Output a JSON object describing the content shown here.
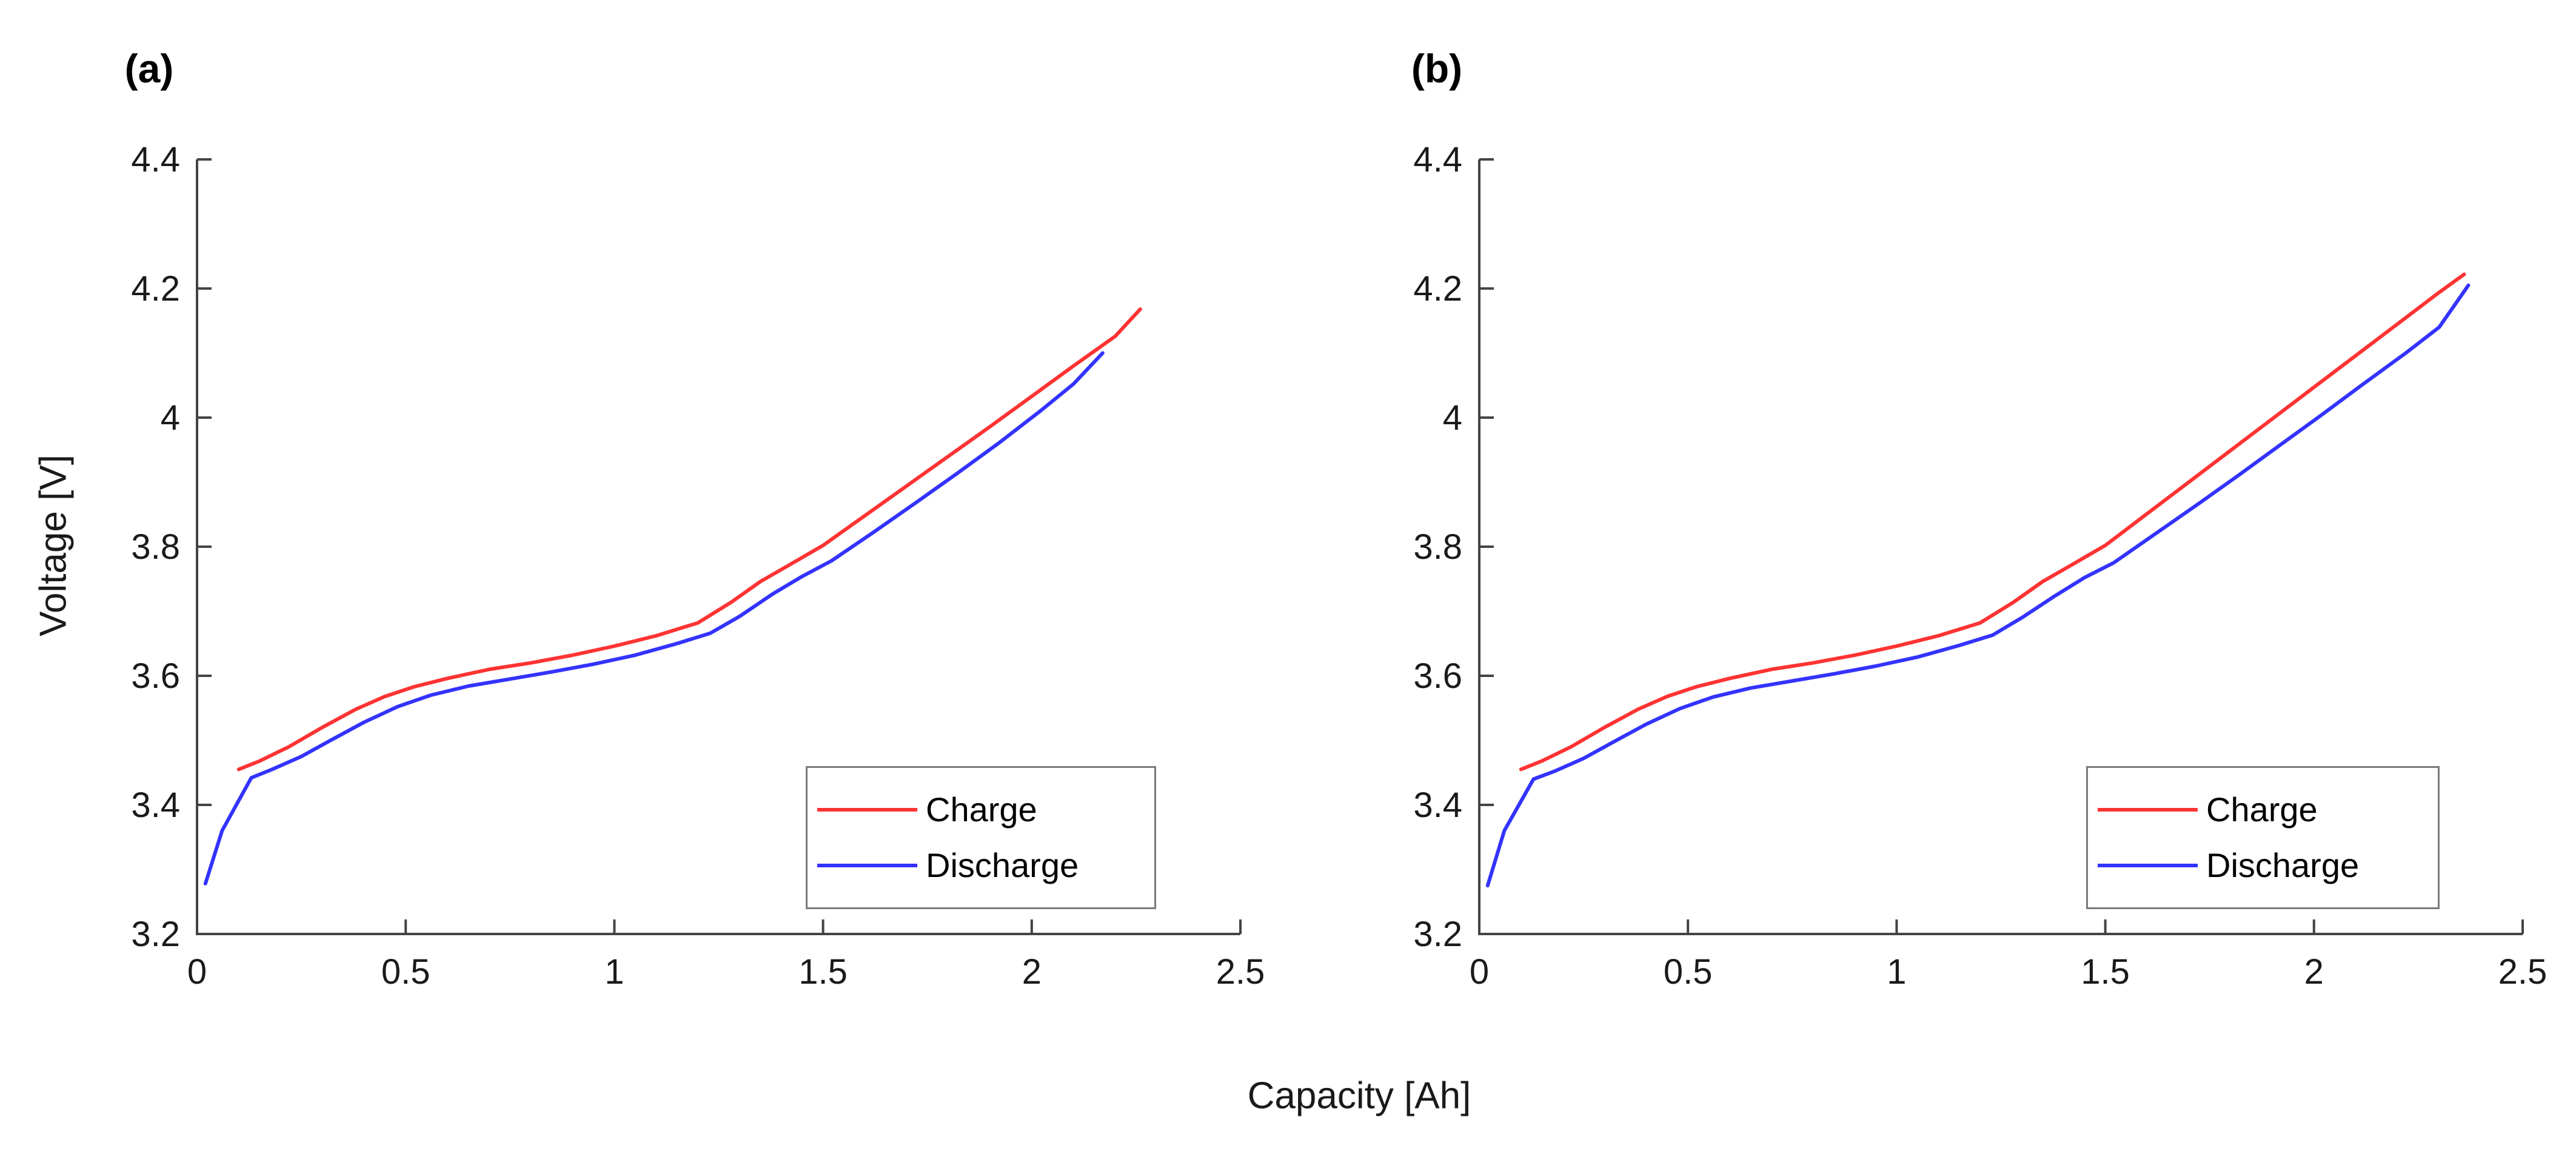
{
  "figure": {
    "background": "#ffffff",
    "shared_xlabel": "Capacity [Ah]",
    "shared_ylabel": "Voltage [V]",
    "axis_color": "#444444",
    "text_color": "#1a1a1a",
    "legend_border_color": "#7a7a7a"
  },
  "chart_data": [
    {
      "type": "line",
      "id": "a",
      "panel_label": "(a)",
      "xlabel": "Capacity [Ah]",
      "ylabel": "Voltage [V]",
      "xlim": [
        0,
        2.5
      ],
      "ylim": [
        3.2,
        4.4
      ],
      "grid": false,
      "box": false,
      "legend_position": "lower right",
      "x_ticks": {
        "values": [
          0,
          0.5,
          1,
          1.5,
          2,
          2.5
        ],
        "labels": [
          "0",
          "0.5",
          "1",
          "1.5",
          "2",
          "2.5"
        ]
      },
      "y_ticks": {
        "values": [
          3.2,
          3.4,
          3.6,
          3.8,
          4,
          4.2,
          4.4
        ],
        "labels": [
          "3.2",
          "3.4",
          "3.6",
          "3.8",
          "4",
          "4.2",
          "4.4"
        ]
      },
      "series": [
        {
          "name": "Charge",
          "color": "#ff3333",
          "x": [
            0.1,
            0.15,
            0.22,
            0.3,
            0.38,
            0.45,
            0.52,
            0.6,
            0.7,
            0.8,
            0.9,
            1.0,
            1.1,
            1.2,
            1.28,
            1.35,
            1.42,
            1.5,
            1.6,
            1.7,
            1.8,
            1.9,
            2.0,
            2.1,
            2.2,
            2.26
          ],
          "y": [
            3.455,
            3.468,
            3.49,
            3.52,
            3.548,
            3.568,
            3.583,
            3.596,
            3.61,
            3.62,
            3.632,
            3.646,
            3.662,
            3.682,
            3.714,
            3.746,
            3.772,
            3.802,
            3.848,
            3.894,
            3.94,
            3.986,
            4.033,
            4.08,
            4.126,
            4.168
          ]
        },
        {
          "name": "Discharge",
          "color": "#3333ff",
          "x": [
            0.02,
            0.06,
            0.13,
            0.18,
            0.25,
            0.32,
            0.4,
            0.48,
            0.56,
            0.65,
            0.75,
            0.85,
            0.95,
            1.05,
            1.15,
            1.23,
            1.3,
            1.38,
            1.45,
            1.52,
            1.62,
            1.72,
            1.82,
            1.92,
            2.02,
            2.1,
            2.17
          ],
          "y": [
            3.278,
            3.36,
            3.442,
            3.455,
            3.475,
            3.5,
            3.528,
            3.552,
            3.57,
            3.584,
            3.595,
            3.606,
            3.618,
            3.632,
            3.65,
            3.666,
            3.692,
            3.727,
            3.754,
            3.778,
            3.822,
            3.867,
            3.913,
            3.96,
            4.01,
            4.052,
            4.1
          ]
        }
      ]
    },
    {
      "type": "line",
      "id": "b",
      "panel_label": "(b)",
      "xlabel": "Capacity [Ah]",
      "ylabel": "Voltage [V]",
      "xlim": [
        0,
        2.5
      ],
      "ylim": [
        3.2,
        4.4
      ],
      "grid": false,
      "box": false,
      "legend_position": "lower right",
      "x_ticks": {
        "values": [
          0,
          0.5,
          1,
          1.5,
          2,
          2.5
        ],
        "labels": [
          "0",
          "0.5",
          "1",
          "1.5",
          "2",
          "2.5"
        ]
      },
      "y_ticks": {
        "values": [
          3.2,
          3.4,
          3.6,
          3.8,
          4,
          4.2,
          4.4
        ],
        "labels": [
          "3.2",
          "3.4",
          "3.6",
          "3.8",
          "4",
          "4.2",
          "4.4"
        ]
      },
      "series": [
        {
          "name": "Charge",
          "color": "#ff3333",
          "x": [
            0.1,
            0.15,
            0.22,
            0.3,
            0.38,
            0.45,
            0.52,
            0.6,
            0.7,
            0.8,
            0.9,
            1.0,
            1.1,
            1.2,
            1.28,
            1.35,
            1.42,
            1.5,
            1.6,
            1.7,
            1.8,
            1.9,
            2.0,
            2.1,
            2.2,
            2.3,
            2.36
          ],
          "y": [
            3.455,
            3.468,
            3.49,
            3.52,
            3.548,
            3.568,
            3.583,
            3.596,
            3.61,
            3.62,
            3.632,
            3.646,
            3.662,
            3.682,
            3.714,
            3.746,
            3.772,
            3.802,
            3.851,
            3.9,
            3.949,
            3.998,
            4.047,
            4.096,
            4.145,
            4.194,
            4.222
          ]
        },
        {
          "name": "Discharge",
          "color": "#3333ff",
          "x": [
            0.02,
            0.06,
            0.13,
            0.18,
            0.25,
            0.32,
            0.4,
            0.48,
            0.56,
            0.65,
            0.75,
            0.85,
            0.95,
            1.05,
            1.15,
            1.23,
            1.3,
            1.38,
            1.45,
            1.52,
            1.62,
            1.72,
            1.82,
            1.92,
            2.02,
            2.12,
            2.22,
            2.3,
            2.37
          ],
          "y": [
            3.275,
            3.36,
            3.44,
            3.452,
            3.472,
            3.497,
            3.525,
            3.549,
            3.567,
            3.581,
            3.592,
            3.603,
            3.615,
            3.629,
            3.647,
            3.663,
            3.69,
            3.724,
            3.752,
            3.775,
            3.82,
            3.865,
            3.911,
            3.958,
            4.005,
            4.053,
            4.1,
            4.14,
            4.205
          ]
        }
      ]
    }
  ]
}
